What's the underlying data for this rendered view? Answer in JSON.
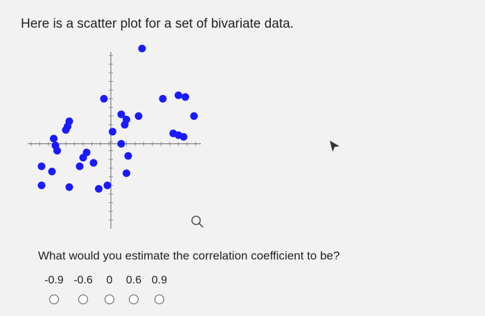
{
  "header": {
    "title": "Here is a scatter plot for a set of bivariate data."
  },
  "chart_data": {
    "type": "scatter",
    "color": "#1a1aff",
    "x": [
      1.8,
      -0.4,
      3.0,
      3.9,
      4.3,
      4.8,
      0.6,
      0.9,
      0.8,
      1.6,
      -2.5,
      -2.6,
      -2.4,
      0.1,
      -3.3,
      -3.2,
      -3.1,
      0.6,
      3.6,
      3.9,
      4.2,
      -1.4,
      -1.6,
      -1.0,
      -1.8,
      1.0,
      0.9,
      -4.0,
      -3.4,
      -4.0,
      -2.4,
      -0.7,
      -0.2
    ],
    "values": [
      5.5,
      2.6,
      2.6,
      2.8,
      2.7,
      1.6,
      1.7,
      1.4,
      1.1,
      1.6,
      1.0,
      0.8,
      1.3,
      0.7,
      0.3,
      -0.1,
      -0.4,
      0.0,
      0.6,
      0.5,
      0.4,
      -0.5,
      -0.8,
      -1.1,
      -1.3,
      -0.7,
      -1.7,
      -1.3,
      -1.6,
      -2.4,
      -2.5,
      -2.6,
      -2.4
    ],
    "xlim": [
      -4.8,
      5.2
    ],
    "ylim": [
      -4.9,
      5.5
    ]
  },
  "question": {
    "text": "What would you estimate the correlation coefficient to be?",
    "options": [
      "-0.9",
      "-0.6",
      "0",
      "0.6",
      "0.9"
    ]
  }
}
